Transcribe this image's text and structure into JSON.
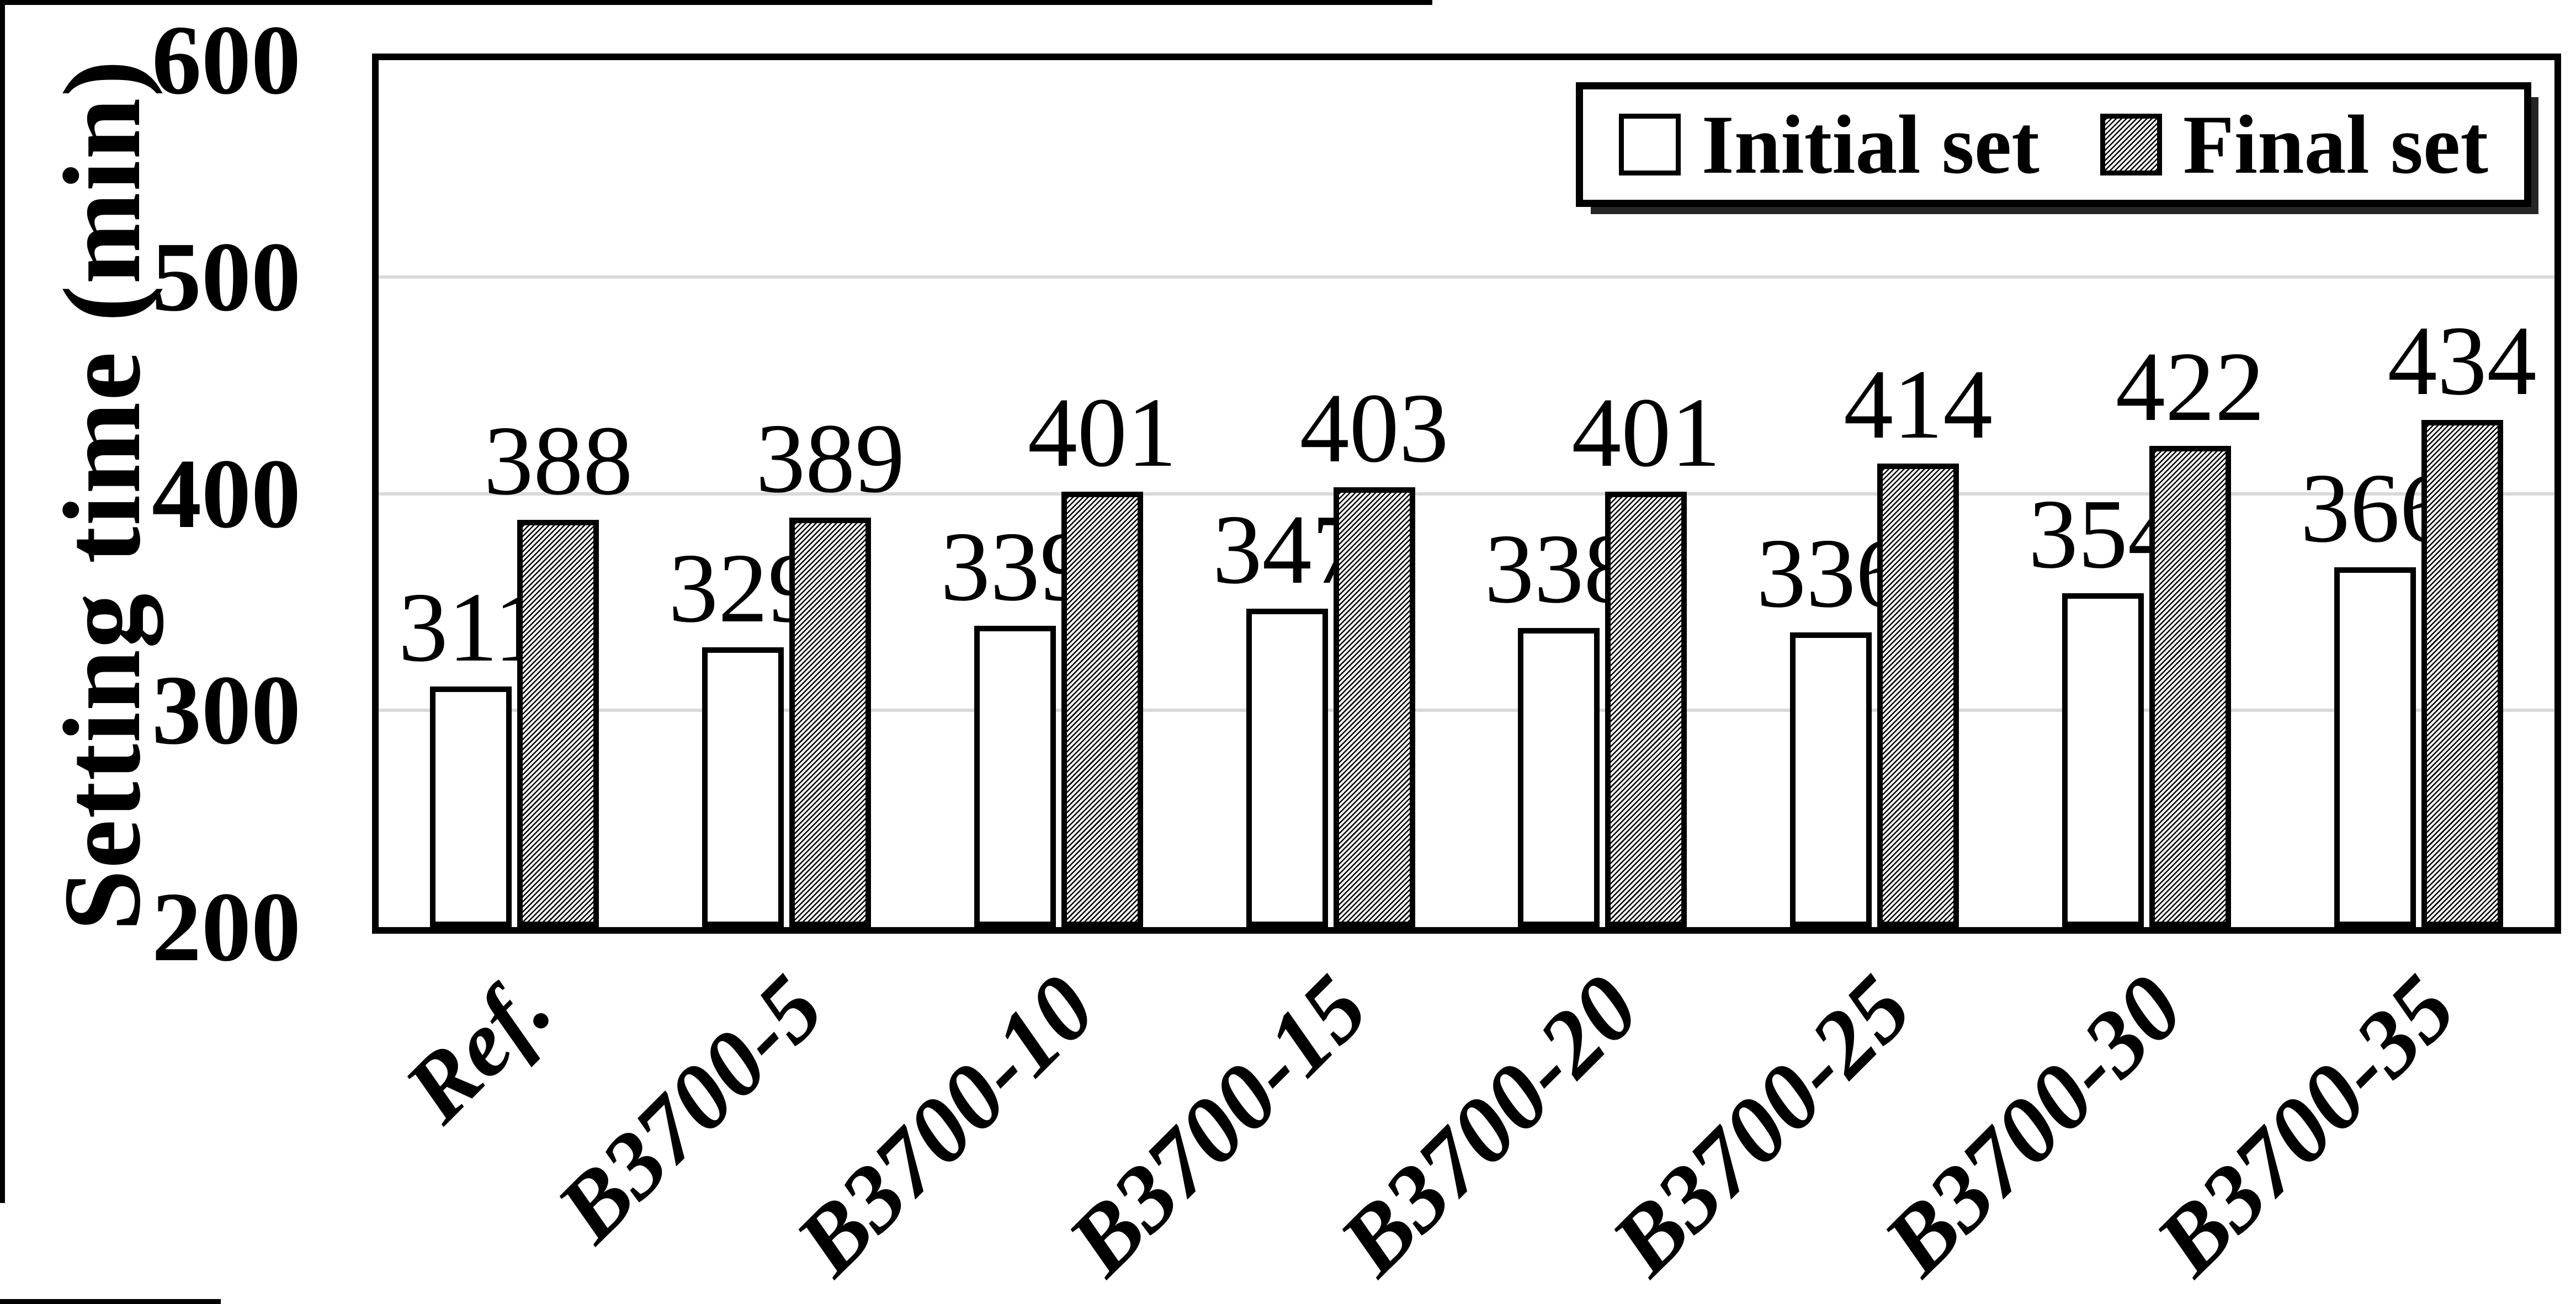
{
  "colors": {
    "background": "#ffffff",
    "text": "#000000",
    "axis": "#000000",
    "gridline": "#d9d9d9",
    "bar_border": "#000000",
    "bar_initial_fill": "#ffffff",
    "bar_final_fill": "black-diagonal-hatch-on-white"
  },
  "legend": {
    "items": [
      {
        "label": "Initial set",
        "swatch": "white-square"
      },
      {
        "label": "Final set",
        "swatch": "hatched-gray-square"
      }
    ]
  },
  "chart_data": {
    "type": "bar",
    "title": "",
    "xlabel": "",
    "ylabel": "Setting time (min)",
    "ylim": [
      200,
      600
    ],
    "yticks": [
      200,
      300,
      400,
      500,
      600
    ],
    "grid": "horizontal gridlines at 300, 400, 500",
    "legend_position": "top-right inside plot",
    "bar_labels": "value above each bar",
    "categories": [
      "Ref.",
      "B3700-5",
      "B3700-10",
      "B3700-15",
      "B3700-20",
      "B3700-25",
      "B3700-30",
      "B3700-35"
    ],
    "series": [
      {
        "name": "Initial set",
        "fill": "white",
        "values": [
          311,
          329,
          339,
          347,
          338,
          336,
          354,
          366
        ]
      },
      {
        "name": "Final set",
        "fill": "hatched",
        "values": [
          388,
          389,
          401,
          403,
          401,
          414,
          422,
          434
        ]
      }
    ]
  }
}
